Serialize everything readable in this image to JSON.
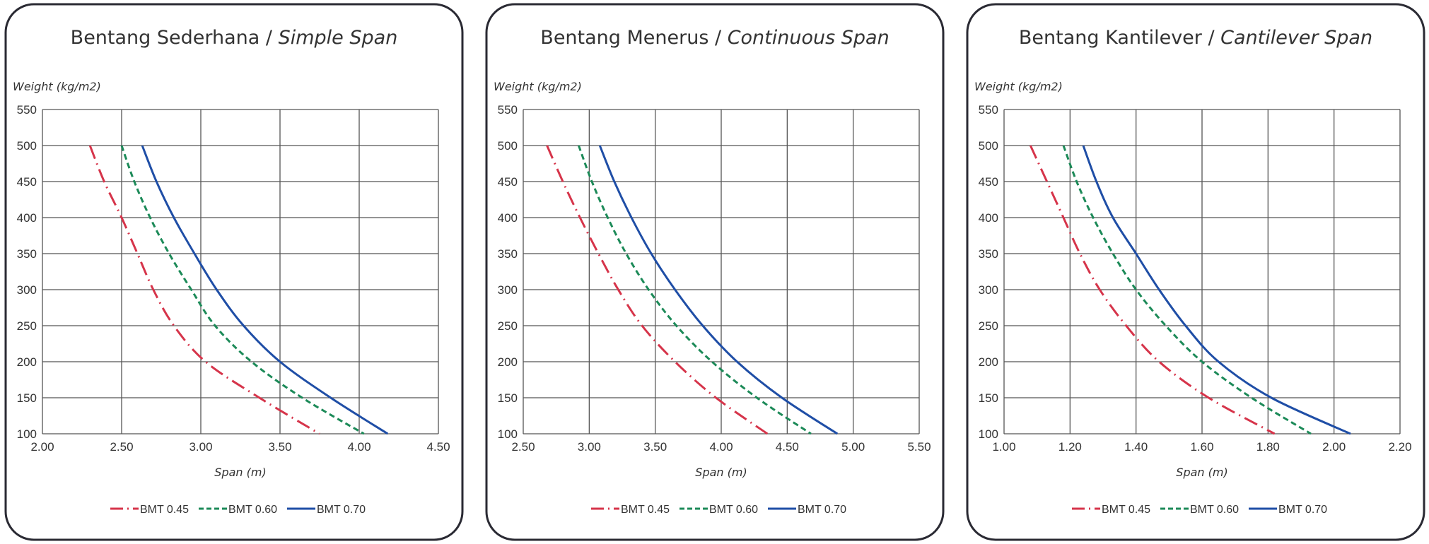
{
  "colors": {
    "BMT 0.45": "#d6344a",
    "BMT 0.60": "#1c8a58",
    "BMT 0.70": "#1f4ea6"
  },
  "chart_data": [
    {
      "type": "line",
      "title": "Bentang Sederhana / ",
      "title_italic": "Simple Span",
      "xlabel": "Span (m)",
      "ylabel": "Weight (kg/m2)",
      "xlim": [
        2.0,
        4.5
      ],
      "ylim": [
        100,
        550
      ],
      "xticks": [
        "2.00",
        "2.50",
        "3.00",
        "3.50",
        "4.00",
        "4.50"
      ],
      "yticks": [
        "550",
        "500",
        "450",
        "400",
        "350",
        "300",
        "250",
        "200",
        "150",
        "100"
      ],
      "grid": true,
      "legend": "bottom",
      "series": [
        {
          "name": "BMT 0.45",
          "style": "dash-dot",
          "points": [
            [
              2.3,
              500
            ],
            [
              2.39,
              450
            ],
            [
              2.5,
              400
            ],
            [
              2.6,
              350
            ],
            [
              2.7,
              300
            ],
            [
              2.83,
              250
            ],
            [
              3.03,
              200
            ],
            [
              3.37,
              150
            ],
            [
              3.75,
              100
            ]
          ]
        },
        {
          "name": "BMT 0.60",
          "style": "dashed",
          "points": [
            [
              2.5,
              500
            ],
            [
              2.58,
              450
            ],
            [
              2.68,
              400
            ],
            [
              2.8,
              350
            ],
            [
              2.94,
              300
            ],
            [
              3.09,
              250
            ],
            [
              3.32,
              200
            ],
            [
              3.64,
              150
            ],
            [
              4.03,
              100
            ]
          ]
        },
        {
          "name": "BMT 0.70",
          "style": "solid",
          "points": [
            [
              2.63,
              500
            ],
            [
              2.72,
              450
            ],
            [
              2.83,
              400
            ],
            [
              2.96,
              350
            ],
            [
              3.1,
              300
            ],
            [
              3.27,
              250
            ],
            [
              3.5,
              200
            ],
            [
              3.82,
              150
            ],
            [
              4.18,
              100
            ]
          ]
        }
      ]
    },
    {
      "type": "line",
      "title": "Bentang Menerus / ",
      "title_italic": "Continuous Span",
      "xlabel": "Span (m)",
      "ylabel": "Weight (kg/m2)",
      "xlim": [
        2.5,
        5.5
      ],
      "ylim": [
        100,
        550
      ],
      "xticks": [
        "2.50",
        "3.00",
        "3.50",
        "4.00",
        "4.50",
        "5.00",
        "5.50"
      ],
      "yticks": [
        "550",
        "500",
        "450",
        "400",
        "350",
        "300",
        "250",
        "200",
        "150",
        "100"
      ],
      "grid": true,
      "legend": "bottom",
      "series": [
        {
          "name": "BMT 0.45",
          "style": "dash-dot",
          "points": [
            [
              2.68,
              500
            ],
            [
              2.8,
              450
            ],
            [
              2.93,
              400
            ],
            [
              3.07,
              350
            ],
            [
              3.22,
              300
            ],
            [
              3.4,
              250
            ],
            [
              3.65,
              200
            ],
            [
              3.96,
              150
            ],
            [
              4.35,
              100
            ]
          ]
        },
        {
          "name": "BMT 0.60",
          "style": "dashed",
          "points": [
            [
              2.92,
              500
            ],
            [
              3.02,
              450
            ],
            [
              3.14,
              400
            ],
            [
              3.28,
              350
            ],
            [
              3.45,
              300
            ],
            [
              3.66,
              250
            ],
            [
              3.93,
              200
            ],
            [
              4.27,
              150
            ],
            [
              4.68,
              100
            ]
          ]
        },
        {
          "name": "BMT 0.70",
          "style": "solid",
          "points": [
            [
              3.08,
              500
            ],
            [
              3.19,
              450
            ],
            [
              3.32,
              400
            ],
            [
              3.47,
              350
            ],
            [
              3.65,
              300
            ],
            [
              3.86,
              250
            ],
            [
              4.12,
              200
            ],
            [
              4.46,
              150
            ],
            [
              4.88,
              100
            ]
          ]
        }
      ]
    },
    {
      "type": "line",
      "title": "Bentang Kantilever / ",
      "title_italic": "Cantilever Span",
      "xlabel": "Span (m)",
      "ylabel": "Weight (kg/m2)",
      "xlim": [
        1.0,
        2.2
      ],
      "ylim": [
        100,
        550
      ],
      "xticks": [
        "1.00",
        "1.20",
        "1.40",
        "1.60",
        "1.80",
        "2.00",
        "2.20"
      ],
      "yticks": [
        "550",
        "500",
        "450",
        "400",
        "350",
        "300",
        "250",
        "200",
        "150",
        "100"
      ],
      "grid": true,
      "legend": "bottom",
      "series": [
        {
          "name": "BMT 0.45",
          "style": "dash-dot",
          "points": [
            [
              1.08,
              500
            ],
            [
              1.13,
              450
            ],
            [
              1.18,
              400
            ],
            [
              1.23,
              350
            ],
            [
              1.29,
              300
            ],
            [
              1.37,
              250
            ],
            [
              1.47,
              200
            ],
            [
              1.62,
              150
            ],
            [
              1.82,
              100
            ]
          ]
        },
        {
          "name": "BMT 0.60",
          "style": "dashed",
          "points": [
            [
              1.18,
              500
            ],
            [
              1.22,
              450
            ],
            [
              1.27,
              400
            ],
            [
              1.33,
              350
            ],
            [
              1.4,
              300
            ],
            [
              1.49,
              250
            ],
            [
              1.6,
              200
            ],
            [
              1.75,
              150
            ],
            [
              1.93,
              100
            ]
          ]
        },
        {
          "name": "BMT 0.70",
          "style": "solid",
          "points": [
            [
              1.24,
              500
            ],
            [
              1.28,
              450
            ],
            [
              1.33,
              400
            ],
            [
              1.4,
              350
            ],
            [
              1.47,
              300
            ],
            [
              1.55,
              250
            ],
            [
              1.65,
              200
            ],
            [
              1.81,
              150
            ],
            [
              2.05,
              100
            ]
          ]
        }
      ]
    }
  ]
}
